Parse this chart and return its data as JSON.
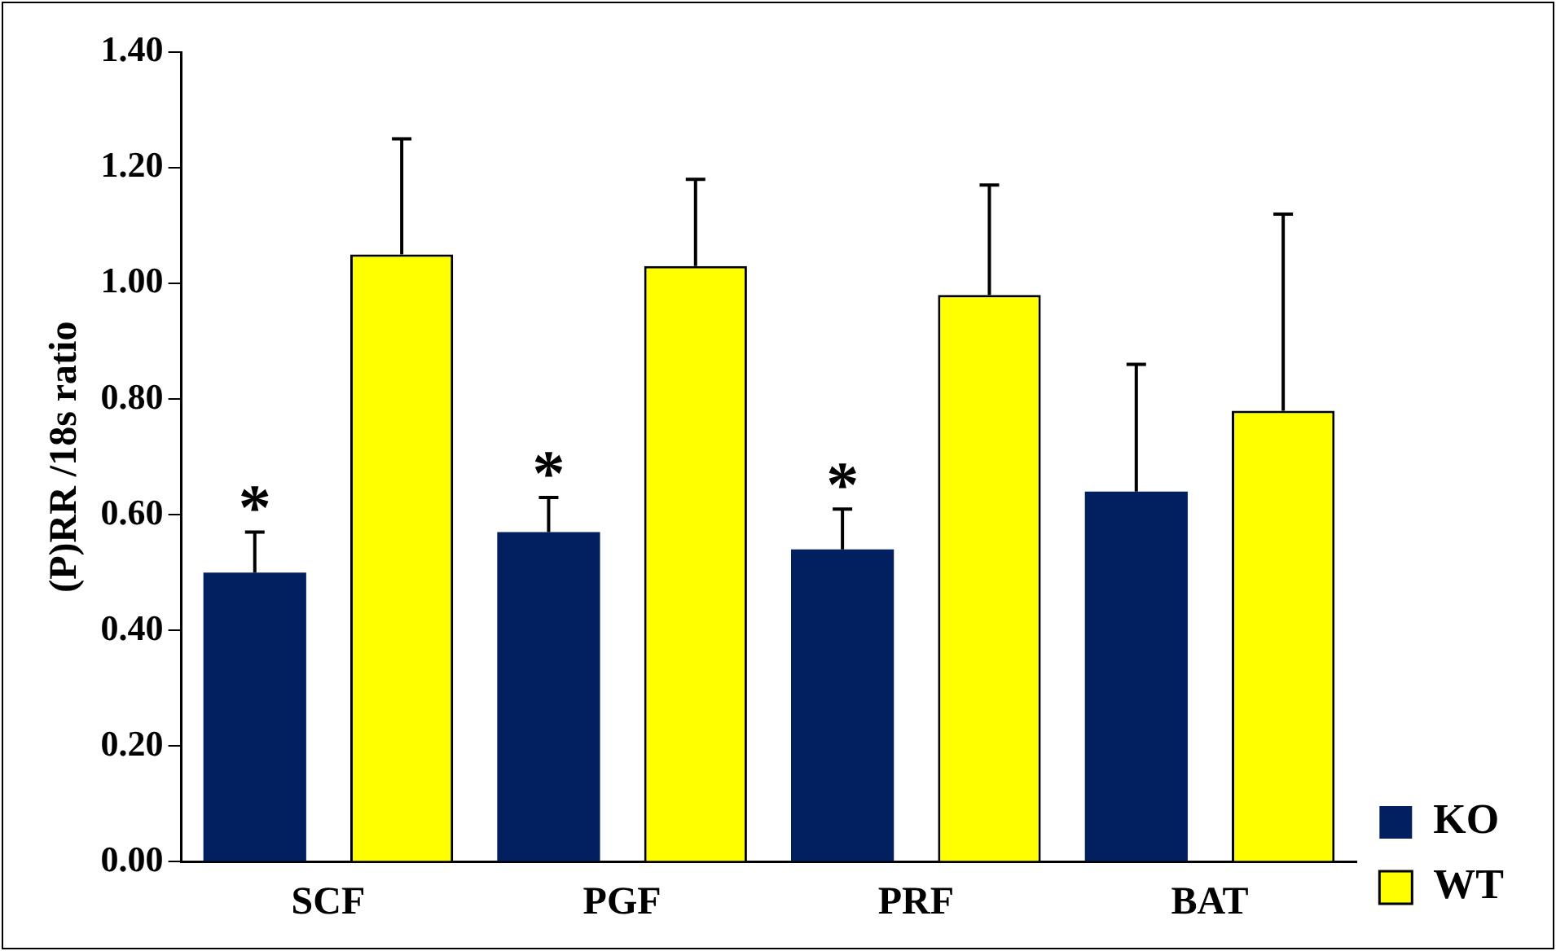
{
  "chart_data": {
    "type": "bar",
    "ylabel": "(P)RR /18s ratio",
    "categories": [
      "SCF",
      "PGF",
      "PRF",
      "BAT"
    ],
    "series": [
      {
        "name": "KO",
        "color": "#022060",
        "values": [
          0.5,
          0.57,
          0.54,
          0.64
        ],
        "errors": [
          0.07,
          0.06,
          0.07,
          0.22
        ]
      },
      {
        "name": "WT",
        "color": "#ffff00",
        "values": [
          1.05,
          1.03,
          0.98,
          0.78
        ],
        "errors": [
          0.2,
          0.15,
          0.19,
          0.34
        ]
      }
    ],
    "ylim": [
      0,
      1.4
    ],
    "yticks": [
      {
        "value": 0,
        "label": "0.00"
      },
      {
        "value": 0.2,
        "label": "0.20"
      },
      {
        "value": 0.4,
        "label": "0.40"
      },
      {
        "value": 0.6,
        "label": "0.60"
      },
      {
        "value": 0.8,
        "label": "0.80"
      },
      {
        "value": 1.0,
        "label": "1.00"
      },
      {
        "value": 1.2,
        "label": "1.20"
      },
      {
        "value": 1.4,
        "label": "1.40"
      }
    ],
    "annotations": [
      "*",
      "*",
      "*"
    ],
    "grid": false,
    "legend": "right"
  }
}
